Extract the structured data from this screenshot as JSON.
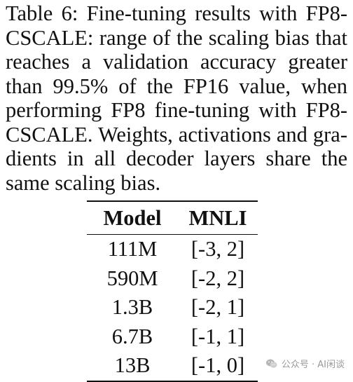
{
  "caption": {
    "lines": [
      "Table 6: Fine-tuning results with FP8-",
      "CSCALE: range of the scaling bias that",
      "reaches a validation accuracy greater",
      "than 99.5% of the FP16 value, when",
      "performing FP8 fine-tuning with FP8-",
      "CSCALE. Weights, activations and gra-",
      "dients in all decoder layers share the",
      "same scaling bias."
    ]
  },
  "table": {
    "headers": [
      "Model",
      "MNLI"
    ],
    "rows": [
      [
        "111M",
        "[-3, 2]"
      ],
      [
        "590M",
        "[-2, 2]"
      ],
      [
        "1.3B",
        "[-2, 1]"
      ],
      [
        "6.7B",
        "[-1, 1]"
      ],
      [
        "13B",
        "[-1, 0]"
      ]
    ]
  },
  "watermark": {
    "text": "公众号 · AI闲谈",
    "icon": "wechat-icon",
    "color": "#9a9a9a"
  }
}
